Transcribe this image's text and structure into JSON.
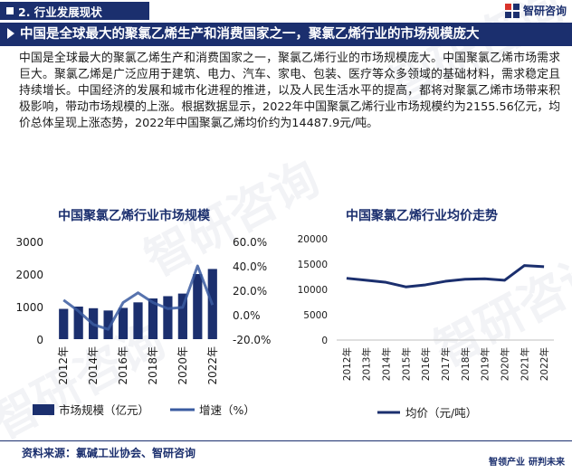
{
  "section": {
    "label": "2. 行业发展现状"
  },
  "brand": {
    "name": "智研咨询"
  },
  "headline": {
    "text": "中国是全球最大的聚氯乙烯生产和消费国家之一，聚氯乙烯行业的市场规模庞大"
  },
  "body": {
    "paragraph": "中国是全球最大的聚氯乙烯生产和消费国家之一，聚氯乙烯行业的市场规模庞大。中国聚氯乙烯市场需求巨大。聚氯乙烯是广泛应用于建筑、电力、汽车、家电、包装、医疗等众多领域的基础材料，需求稳定且持续增长。中国经济的发展和城市化进程的推进，以及人民生活水平的提高，都将对聚氯乙烯市场带来积极影响，带动市场规模的上涨。根据数据显示，2022年中国聚氯乙烯行业市场规模约为2155.56亿元，均价总体呈现上涨态势，2022年中国聚氯乙烯均价约为14487.9元/吨。"
  },
  "chart_data": [
    {
      "type": "bar",
      "title": "中国聚氯乙烯行业市场规模",
      "categories": [
        "2012",
        "2013",
        "2014",
        "2015",
        "2016",
        "2017",
        "2018",
        "2019",
        "2020",
        "2021",
        "2022"
      ],
      "x_tick_labels": [
        "2012年",
        "2014年",
        "2016年",
        "2018年",
        "2020年",
        "2022年"
      ],
      "series": [
        {
          "name": "市场规模（亿元）",
          "type": "bar",
          "axis": "left",
          "color": "#1b2f6e",
          "values": [
            930,
            1000,
            950,
            880,
            960,
            1130,
            1250,
            1320,
            1400,
            2000,
            2155.56
          ]
        },
        {
          "name": "增速（%）",
          "type": "line",
          "axis": "right",
          "color": "#3a5ba0",
          "values": [
            12,
            3,
            -8,
            -12,
            10,
            18,
            10,
            5,
            6,
            40,
            8
          ]
        }
      ],
      "y_left": {
        "ticks": [
          "3000",
          "2000",
          "1000",
          "0"
        ],
        "range": [
          0,
          3000
        ]
      },
      "y_right": {
        "ticks": [
          "60.0%",
          "40.0%",
          "20.0%",
          "0.0%",
          "-20.0%"
        ],
        "range": [
          -20,
          60
        ]
      },
      "legend_position": "bottom"
    },
    {
      "type": "line",
      "title": "中国聚氯乙烯行业均价走势",
      "categories": [
        "2012年",
        "2013年",
        "2014年",
        "2015年",
        "2016年",
        "2017年",
        "2018年",
        "2019年",
        "2020年",
        "2021年",
        "2022年"
      ],
      "series": [
        {
          "name": "均价（元/吨）",
          "color": "#1b2f6e",
          "values": [
            12200,
            11800,
            11400,
            10500,
            10900,
            11600,
            12000,
            12100,
            11800,
            14700,
            14487.9
          ]
        }
      ],
      "y_axis": {
        "ticks": [
          "20000",
          "15000",
          "10000",
          "5000",
          "0"
        ],
        "range": [
          0,
          20000
        ]
      },
      "legend_position": "bottom"
    }
  ],
  "footer": {
    "source": "资料来源：氯碱工业协会、智研咨询",
    "brand": "智领产业",
    "tagline": "研判未来"
  },
  "watermark": {
    "text": "智研咨询"
  }
}
